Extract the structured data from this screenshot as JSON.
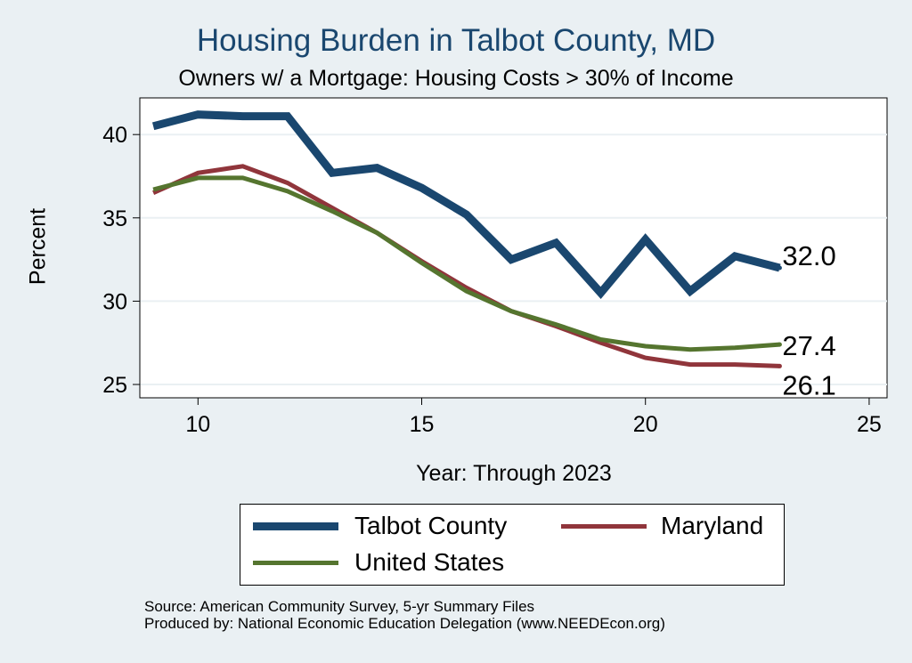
{
  "chart_data": {
    "type": "line",
    "title": "Housing Burden in Talbot County, MD",
    "subtitle": "Owners w/ a Mortgage: Housing Costs > 30% of Income",
    "xlabel": "Year: Through 2023",
    "ylabel": "Percent",
    "xlim": [
      8.7,
      25.4
    ],
    "ylim": [
      24.2,
      42.2
    ],
    "xticks": [
      10,
      15,
      20,
      25
    ],
    "yticks": [
      25,
      30,
      35,
      40
    ],
    "grid": true,
    "legend_position": "bottom",
    "series": [
      {
        "name": "Talbot County",
        "color": "#1a476f",
        "width": 9,
        "x": [
          9,
          10,
          11,
          12,
          13,
          14,
          15,
          16,
          17,
          18,
          19,
          20,
          21,
          22,
          23
        ],
        "y": [
          40.5,
          41.2,
          41.1,
          41.1,
          37.7,
          38.0,
          36.8,
          35.2,
          32.5,
          33.5,
          30.5,
          33.7,
          30.6,
          32.7,
          32.0
        ],
        "end_label": "32.0"
      },
      {
        "name": "Maryland",
        "color": "#90353b",
        "width": 5,
        "x": [
          9,
          10,
          11,
          12,
          13,
          14,
          15,
          16,
          17,
          18,
          19,
          20,
          21,
          22,
          23
        ],
        "y": [
          36.5,
          37.7,
          38.1,
          37.1,
          35.6,
          34.1,
          32.4,
          30.8,
          29.4,
          28.5,
          27.5,
          26.6,
          26.2,
          26.2,
          26.1
        ],
        "end_label": "26.1"
      },
      {
        "name": "United States",
        "color": "#55752f",
        "width": 5,
        "x": [
          9,
          10,
          11,
          12,
          13,
          14,
          15,
          16,
          17,
          18,
          19,
          20,
          21,
          22,
          23
        ],
        "y": [
          36.7,
          37.4,
          37.4,
          36.6,
          35.4,
          34.1,
          32.3,
          30.6,
          29.4,
          28.6,
          27.7,
          27.3,
          27.1,
          27.2,
          27.4
        ],
        "end_label": "27.4"
      }
    ]
  },
  "legend": {
    "items": [
      "Talbot County",
      "Maryland",
      "United States"
    ]
  },
  "source": {
    "line1": "Source: American Community Survey, 5-yr Summary Files",
    "line2": "Produced by: National Economic Education Delegation (www.NEEDEcon.org)"
  }
}
